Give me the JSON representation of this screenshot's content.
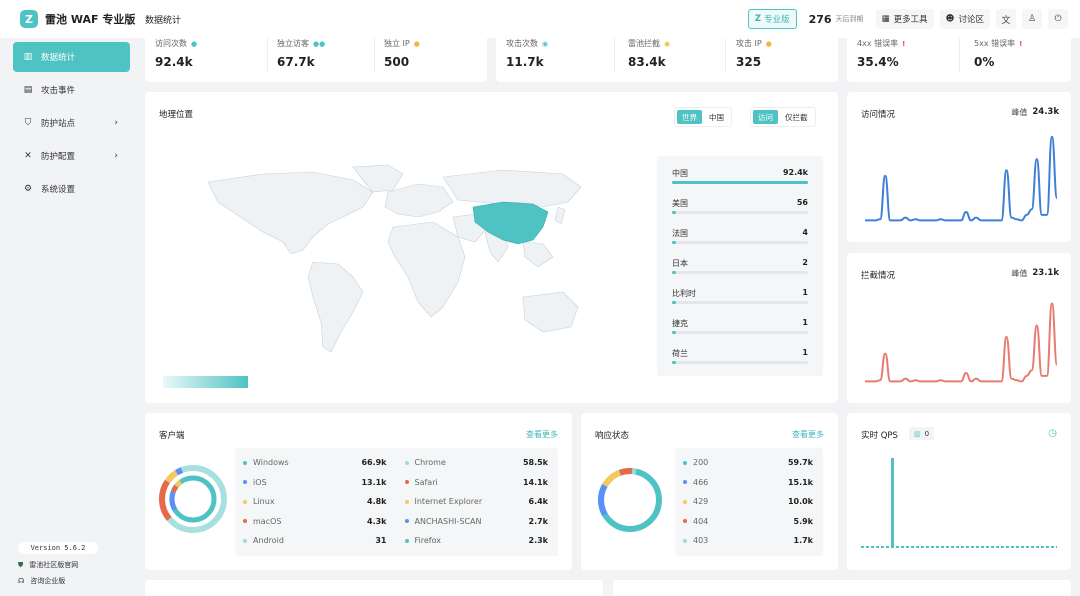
{
  "app": {
    "logo_char": "Z",
    "name": "雷池 WAF 专业版",
    "page_title": "数据统计"
  },
  "topbar": {
    "pro_label": "专业版",
    "pro_icon": "Z",
    "days_value": "276",
    "days_label": "天后到期",
    "more_tools": "更多工具",
    "forum": "讨论区"
  },
  "sidebar": {
    "items": [
      {
        "label": "数据统计",
        "icon": "bar-chart-icon"
      },
      {
        "label": "攻击事件",
        "icon": "event-icon"
      },
      {
        "label": "防护站点",
        "icon": "shield-icon"
      },
      {
        "label": "防护配置",
        "icon": "tools-icon"
      },
      {
        "label": "系统设置",
        "icon": "gear-icon"
      }
    ],
    "version": "Version 5.6.2",
    "community_link": "雷池社区版官网",
    "enterprise_link": "咨询企业版"
  },
  "stats": {
    "visits_label": "访问次数",
    "visits_value": "92.4k",
    "uv_label": "独立访客",
    "uv_value": "67.7k",
    "ip_label": "独立 IP",
    "ip_value": "500",
    "attacks_label": "攻击次数",
    "attacks_value": "11.7k",
    "blocked_label": "雷池拦截",
    "blocked_value": "83.4k",
    "attack_ip_label": "攻击 IP",
    "attack_ip_value": "325",
    "err4_label": "4xx 错误率",
    "err4_value": "35.4%",
    "err5_label": "5xx 错误率",
    "err5_value": "0%"
  },
  "geo": {
    "title": "地理位置",
    "scope_world": "世界",
    "scope_china": "中国",
    "mode_access": "访问",
    "mode_blocked": "仅拦截",
    "countries": [
      {
        "name": "中国",
        "value": "92.4k",
        "ratio": 1.0
      },
      {
        "name": "美国",
        "value": "56",
        "ratio": 0.03
      },
      {
        "name": "法国",
        "value": "4",
        "ratio": 0.03
      },
      {
        "name": "日本",
        "value": "2",
        "ratio": 0.03
      },
      {
        "name": "比利时",
        "value": "1",
        "ratio": 0.03
      },
      {
        "name": "捷克",
        "value": "1",
        "ratio": 0.03
      },
      {
        "name": "荷兰",
        "value": "1",
        "ratio": 0.03
      }
    ],
    "colors": {
      "highlight": "#4fc2c3",
      "land": "#eef2f5"
    }
  },
  "access_chart": {
    "title": "访问情况",
    "peak_label": "峰值",
    "peak_value": "24.3k",
    "color": "#3f7fd7",
    "chart_data": {
      "type": "line",
      "values": [
        0.1,
        0.1,
        0.1,
        0.12,
        0.9,
        0.1,
        0.1,
        0.1,
        0.15,
        0.1,
        0.12,
        0.1,
        0.1,
        0.1,
        0.1,
        0.12,
        0.1,
        0.1,
        0.1,
        0.1,
        0.25,
        0.1,
        0.15,
        0.1,
        0.1,
        0.1,
        0.1,
        0.1,
        1.0,
        0.15,
        0.12,
        0.1,
        0.2,
        0.3,
        1.2,
        0.2,
        0.2,
        1.6,
        0.5
      ]
    }
  },
  "block_chart": {
    "title": "拦截情况",
    "peak_label": "峰值",
    "peak_value": "23.1k",
    "color": "#e87a70",
    "chart_data": {
      "type": "line",
      "values": [
        0.1,
        0.1,
        0.1,
        0.12,
        0.6,
        0.1,
        0.1,
        0.1,
        0.15,
        0.1,
        0.12,
        0.1,
        0.1,
        0.1,
        0.1,
        0.12,
        0.1,
        0.1,
        0.1,
        0.1,
        0.25,
        0.1,
        0.15,
        0.1,
        0.1,
        0.1,
        0.1,
        0.1,
        0.9,
        0.15,
        0.12,
        0.1,
        0.2,
        0.3,
        1.1,
        0.2,
        0.2,
        1.5,
        0.4
      ]
    }
  },
  "clients": {
    "title": "客户端",
    "more": "查看更多",
    "items": [
      {
        "name": "Windows",
        "value": "66.9k",
        "color": "#4fc2c3"
      },
      {
        "name": "iOS",
        "value": "13.1k",
        "color": "#5b8ff9"
      },
      {
        "name": "Linux",
        "value": "4.8k",
        "color": "#f6c85f"
      },
      {
        "name": "macOS",
        "value": "4.3k",
        "color": "#e8684a"
      },
      {
        "name": "Android",
        "value": "31",
        "color": "#9ed8d8"
      },
      {
        "name": "Chrome",
        "value": "58.5k",
        "color": "#9ed8d8"
      },
      {
        "name": "Safari",
        "value": "14.1k",
        "color": "#e8684a"
      },
      {
        "name": "Internet Explorer",
        "value": "6.4k",
        "color": "#f6c85f"
      },
      {
        "name": "ANCHASHI-SCAN",
        "value": "2.7k",
        "color": "#5b8ff9"
      },
      {
        "name": "Firefox",
        "value": "2.3k",
        "color": "#4fc2c3"
      }
    ]
  },
  "status": {
    "title": "响应状态",
    "more": "查看更多",
    "items": [
      {
        "name": "200",
        "value": "59.7k",
        "color": "#4fc2c3"
      },
      {
        "name": "466",
        "value": "15.1k",
        "color": "#5b8ff9"
      },
      {
        "name": "429",
        "value": "10.0k",
        "color": "#f6c85f"
      },
      {
        "name": "404",
        "value": "5.9k",
        "color": "#e8684a"
      },
      {
        "name": "403",
        "value": "1.7k",
        "color": "#9ed8d8"
      }
    ]
  },
  "qps": {
    "title": "实时 QPS",
    "badge": "0",
    "color": "#4fc2c3"
  }
}
